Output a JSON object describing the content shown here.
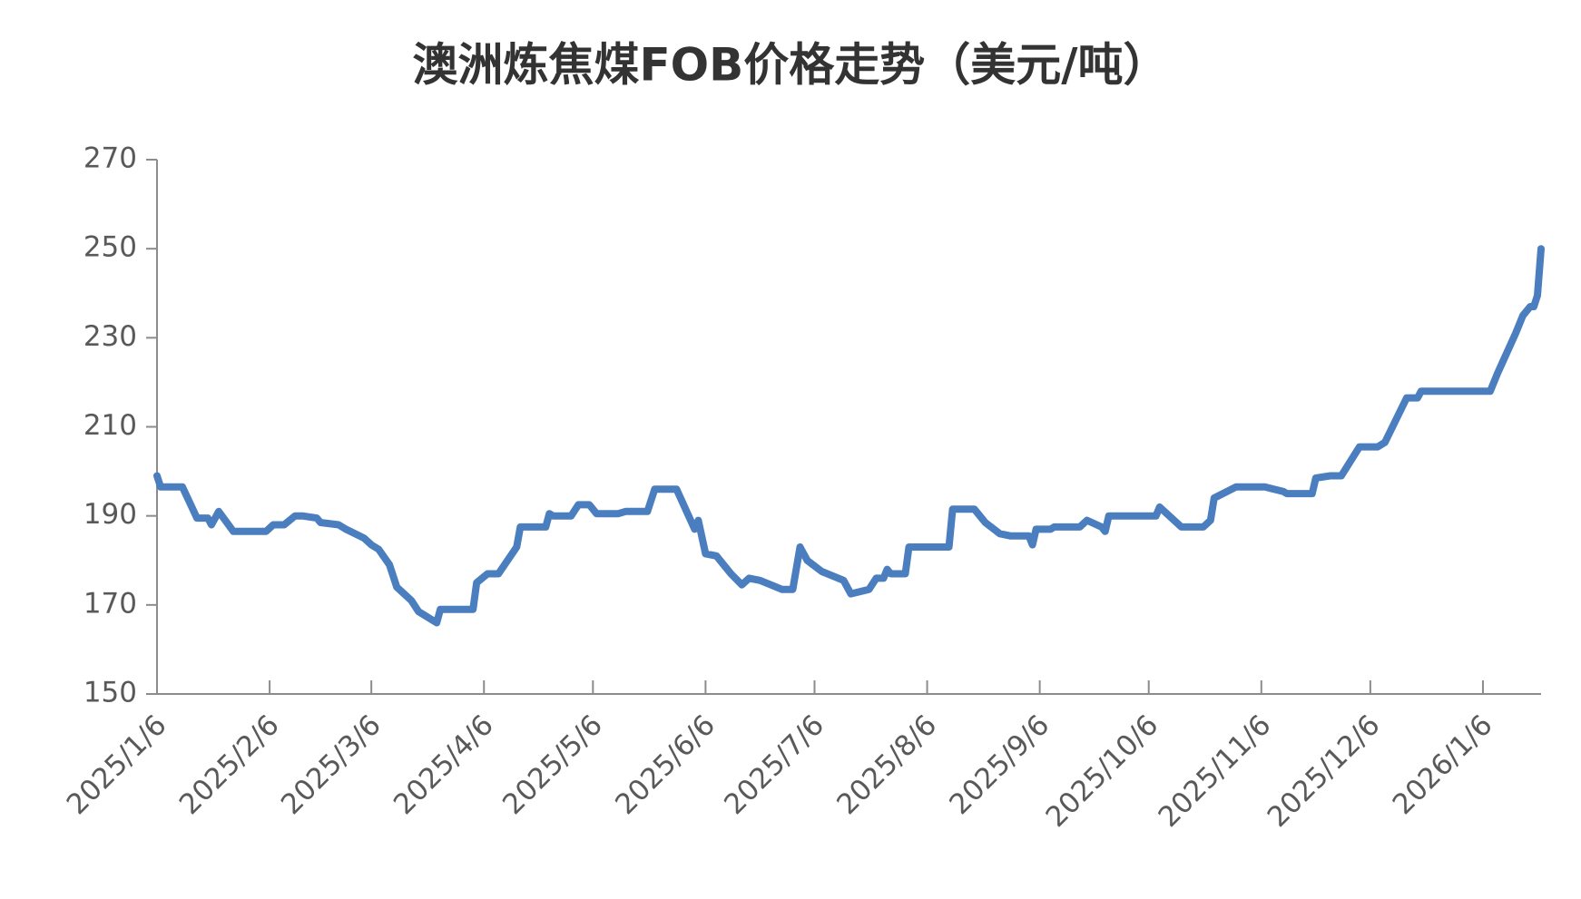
{
  "chart_data": {
    "type": "line",
    "title": "澳洲炼焦煤FOB价格走势（美元/吨）",
    "x": [
      "2025/1/6",
      "2025/1/7",
      "2025/1/13",
      "2025/1/17",
      "2025/1/20",
      "2025/1/21",
      "2025/1/23",
      "2025/1/27",
      "2025/2/5",
      "2025/2/7",
      "2025/2/10",
      "2025/2/13",
      "2025/2/15",
      "2025/2/19",
      "2025/2/20",
      "2025/2/25",
      "2025/2/27",
      "2025/3/4",
      "2025/3/6",
      "2025/3/8",
      "2025/3/11",
      "2025/3/13",
      "2025/3/17",
      "2025/3/19",
      "2025/3/24",
      "2025/3/25",
      "2025/3/28",
      "2025/4/3",
      "2025/4/4",
      "2025/4/7",
      "2025/4/10",
      "2025/4/15",
      "2025/4/16",
      "2025/4/23",
      "2025/4/24",
      "2025/4/25",
      "2025/4/30",
      "2025/5/2",
      "2025/5/5",
      "2025/5/7",
      "2025/5/13",
      "2025/5/15",
      "2025/5/21",
      "2025/5/23",
      "2025/5/29",
      "2025/6/3",
      "2025/6/4",
      "2025/6/6",
      "2025/6/9",
      "2025/6/13",
      "2025/6/16",
      "2025/6/18",
      "2025/6/21",
      "2025/6/24",
      "2025/6/27",
      "2025/6/30",
      "2025/7/2",
      "2025/7/4",
      "2025/7/8",
      "2025/7/14",
      "2025/7/16",
      "2025/7/21",
      "2025/7/23",
      "2025/7/25",
      "2025/7/26",
      "2025/7/27",
      "2025/7/31",
      "2025/8/1",
      "2025/8/12",
      "2025/8/13",
      "2025/8/19",
      "2025/8/20",
      "2025/8/22",
      "2025/8/26",
      "2025/8/29",
      "2025/9/3",
      "2025/9/4",
      "2025/9/5",
      "2025/9/9",
      "2025/9/10",
      "2025/9/17",
      "2025/9/19",
      "2025/9/23",
      "2025/9/24",
      "2025/9/25",
      "2025/10/8",
      "2025/10/9",
      "2025/10/15",
      "2025/10/21",
      "2025/10/23",
      "2025/10/24",
      "2025/10/30",
      "2025/11/7",
      "2025/11/12",
      "2025/11/13",
      "2025/11/20",
      "2025/11/21",
      "2025/11/25",
      "2025/11/28",
      "2025/12/3",
      "2025/12/8",
      "2025/12/10",
      "2025/12/16",
      "2025/12/19",
      "2025/12/20",
      "2026/1/8",
      "2026/1/10",
      "2026/1/15",
      "2026/1/17",
      "2026/1/19",
      "2026/1/20",
      "2026/1/21",
      "2026/1/22"
    ],
    "series": [
      {
        "name": "澳洲炼焦煤FOB价格",
        "color": "#4a7ebf",
        "values": [
          199,
          196.5,
          196.5,
          189.5,
          189.5,
          188,
          191,
          186.5,
          186.5,
          188,
          188,
          190,
          190,
          189.5,
          188.5,
          188,
          187,
          185,
          183.5,
          182.5,
          179,
          174,
          171,
          168.5,
          166,
          169,
          169,
          169,
          175,
          177,
          177,
          183,
          187.5,
          187.5,
          190.5,
          190,
          190,
          192.5,
          192.5,
          190.5,
          190.5,
          191,
          191,
          196,
          196,
          187,
          189,
          181.5,
          181,
          177,
          174.5,
          176,
          175.5,
          174.5,
          173.5,
          173.5,
          183,
          180,
          177.5,
          175.5,
          172.5,
          173.5,
          176,
          176,
          178,
          177,
          177,
          183,
          183,
          191.5,
          191.5,
          190.5,
          188.5,
          186,
          185.5,
          185.5,
          183.5,
          187,
          187,
          187.5,
          187.5,
          189,
          187.5,
          186.5,
          190,
          190,
          192,
          187.5,
          187.5,
          189,
          194,
          196.5,
          196.5,
          195.5,
          195,
          195,
          198.5,
          199,
          199,
          205.5,
          205.5,
          206.5,
          216.5,
          216.5,
          218,
          218,
          222,
          231,
          235,
          237,
          237,
          239.5,
          250
        ]
      }
    ],
    "xlim": [
      "2025/1/6",
      "2026/1/22"
    ],
    "xticks": [
      "2025/1/6",
      "2025/2/6",
      "2025/3/6",
      "2025/4/6",
      "2025/5/6",
      "2025/6/6",
      "2025/7/6",
      "2025/8/6",
      "2025/9/6",
      "2025/10/6",
      "2025/11/6",
      "2025/12/6",
      "2026/1/6"
    ],
    "ylim": [
      150,
      270
    ],
    "yticks": [
      150,
      170,
      190,
      210,
      230,
      250,
      270
    ],
    "grid": false
  }
}
